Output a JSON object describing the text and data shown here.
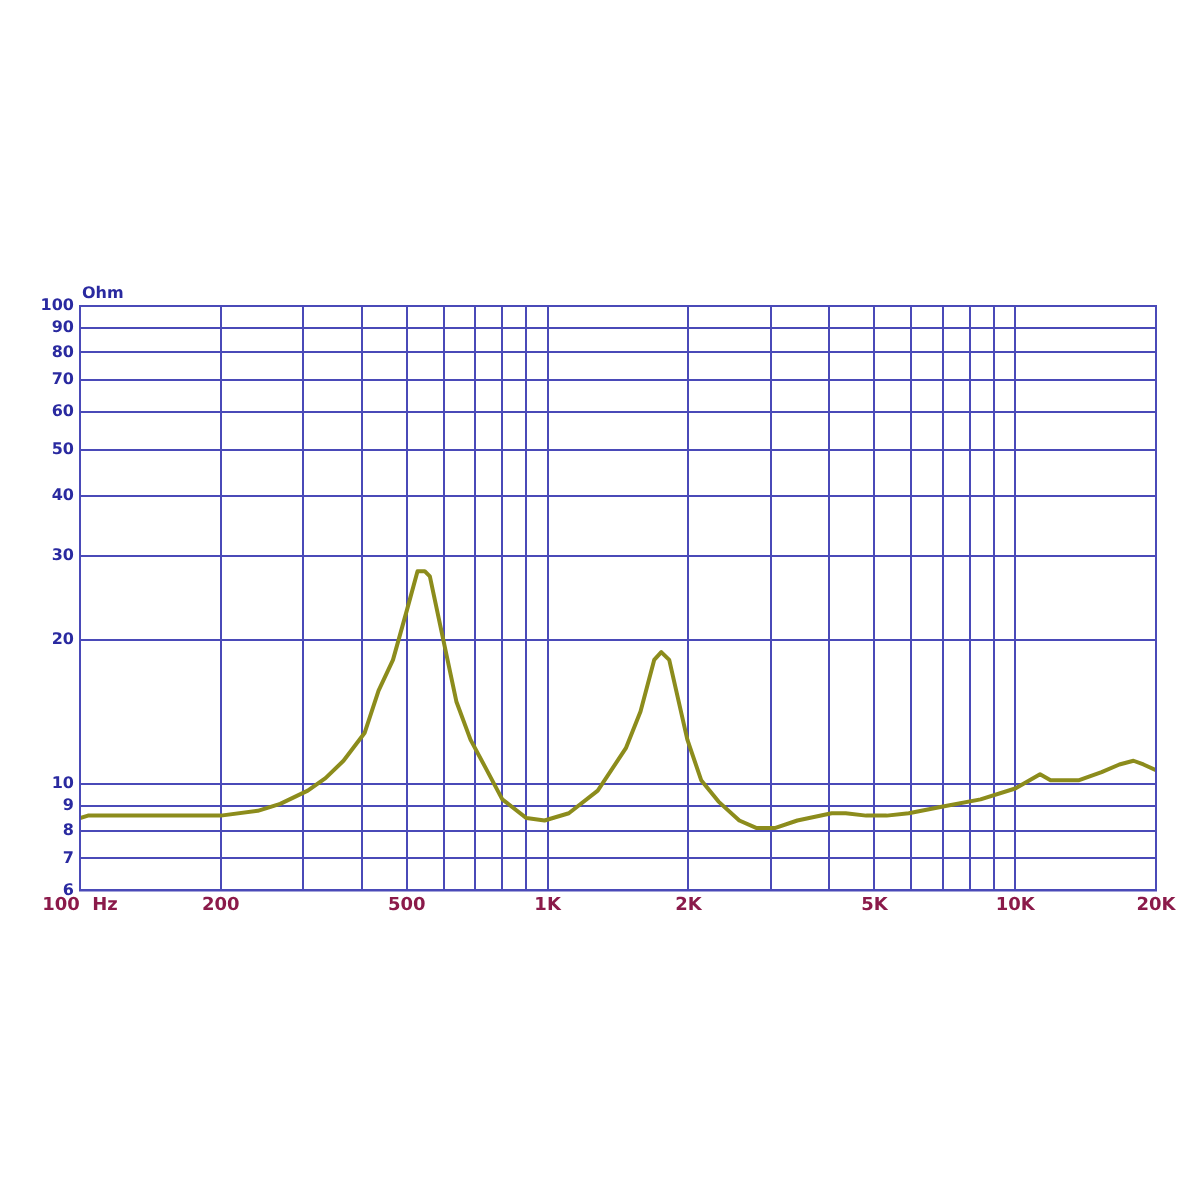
{
  "chart_data": {
    "type": "line",
    "ylabel": "Ohm",
    "log": "xy",
    "grid": true,
    "marker": "none",
    "line_style": "solid",
    "xlim": [
      100,
      20000
    ],
    "ylim": [
      6,
      100
    ],
    "xticks": [
      {
        "value": 100,
        "label": "100  Hz"
      },
      200,
      {
        "value": 300,
        "label": null
      },
      {
        "value": 400,
        "label": null
      },
      500,
      {
        "value": 600,
        "label": null
      },
      {
        "value": 700,
        "label": null
      },
      {
        "value": 800,
        "label": null
      },
      {
        "value": 900,
        "label": null
      },
      {
        "value": 1000,
        "label": "1K"
      },
      {
        "value": 2000,
        "label": "2K"
      },
      {
        "value": 3000,
        "label": null
      },
      {
        "value": 4000,
        "label": null
      },
      {
        "value": 5000,
        "label": "5K"
      },
      {
        "value": 6000,
        "label": null
      },
      {
        "value": 7000,
        "label": null
      },
      {
        "value": 8000,
        "label": null
      },
      {
        "value": 9000,
        "label": null
      },
      {
        "value": 10000,
        "label": "10K"
      },
      {
        "value": 20000,
        "label": "20K"
      }
    ],
    "yticks": [
      6,
      7,
      8,
      9,
      10,
      20,
      30,
      40,
      50,
      60,
      70,
      80,
      90,
      100
    ],
    "series": [
      {
        "color": "#8c8c1c",
        "x": [
          100,
          104,
          143,
          200,
          240,
          268,
          307,
          335,
          366,
          406,
          435,
          467,
          500,
          527,
          546,
          560,
          596,
          638,
          684,
          734,
          800,
          901,
          985,
          1110,
          1280,
          1470,
          1580,
          1690,
          1750,
          1820,
          1990,
          2130,
          2320,
          2570,
          2800,
          3060,
          3420,
          4050,
          4340,
          4800,
          5310,
          5920,
          7050,
          8430,
          10000,
          11300,
          11900,
          13700,
          15300,
          16700,
          17900,
          18800,
          20000
        ],
        "values": [
          8.5,
          8.6,
          8.6,
          8.6,
          8.8,
          9.1,
          9.7,
          10.3,
          11.2,
          12.8,
          15.7,
          18.2,
          23.1,
          27.9,
          27.9,
          27.2,
          20.4,
          14.9,
          12.4,
          10.9,
          9.3,
          8.5,
          8.4,
          8.7,
          9.7,
          11.9,
          14.2,
          18.2,
          18.9,
          18.2,
          12.4,
          10.2,
          9.2,
          8.4,
          8.1,
          8.1,
          8.4,
          8.7,
          8.7,
          8.6,
          8.6,
          8.7,
          9.0,
          9.3,
          9.8,
          10.5,
          10.2,
          10.2,
          10.6,
          11.0,
          11.2,
          11.0,
          10.7
        ]
      }
    ]
  }
}
